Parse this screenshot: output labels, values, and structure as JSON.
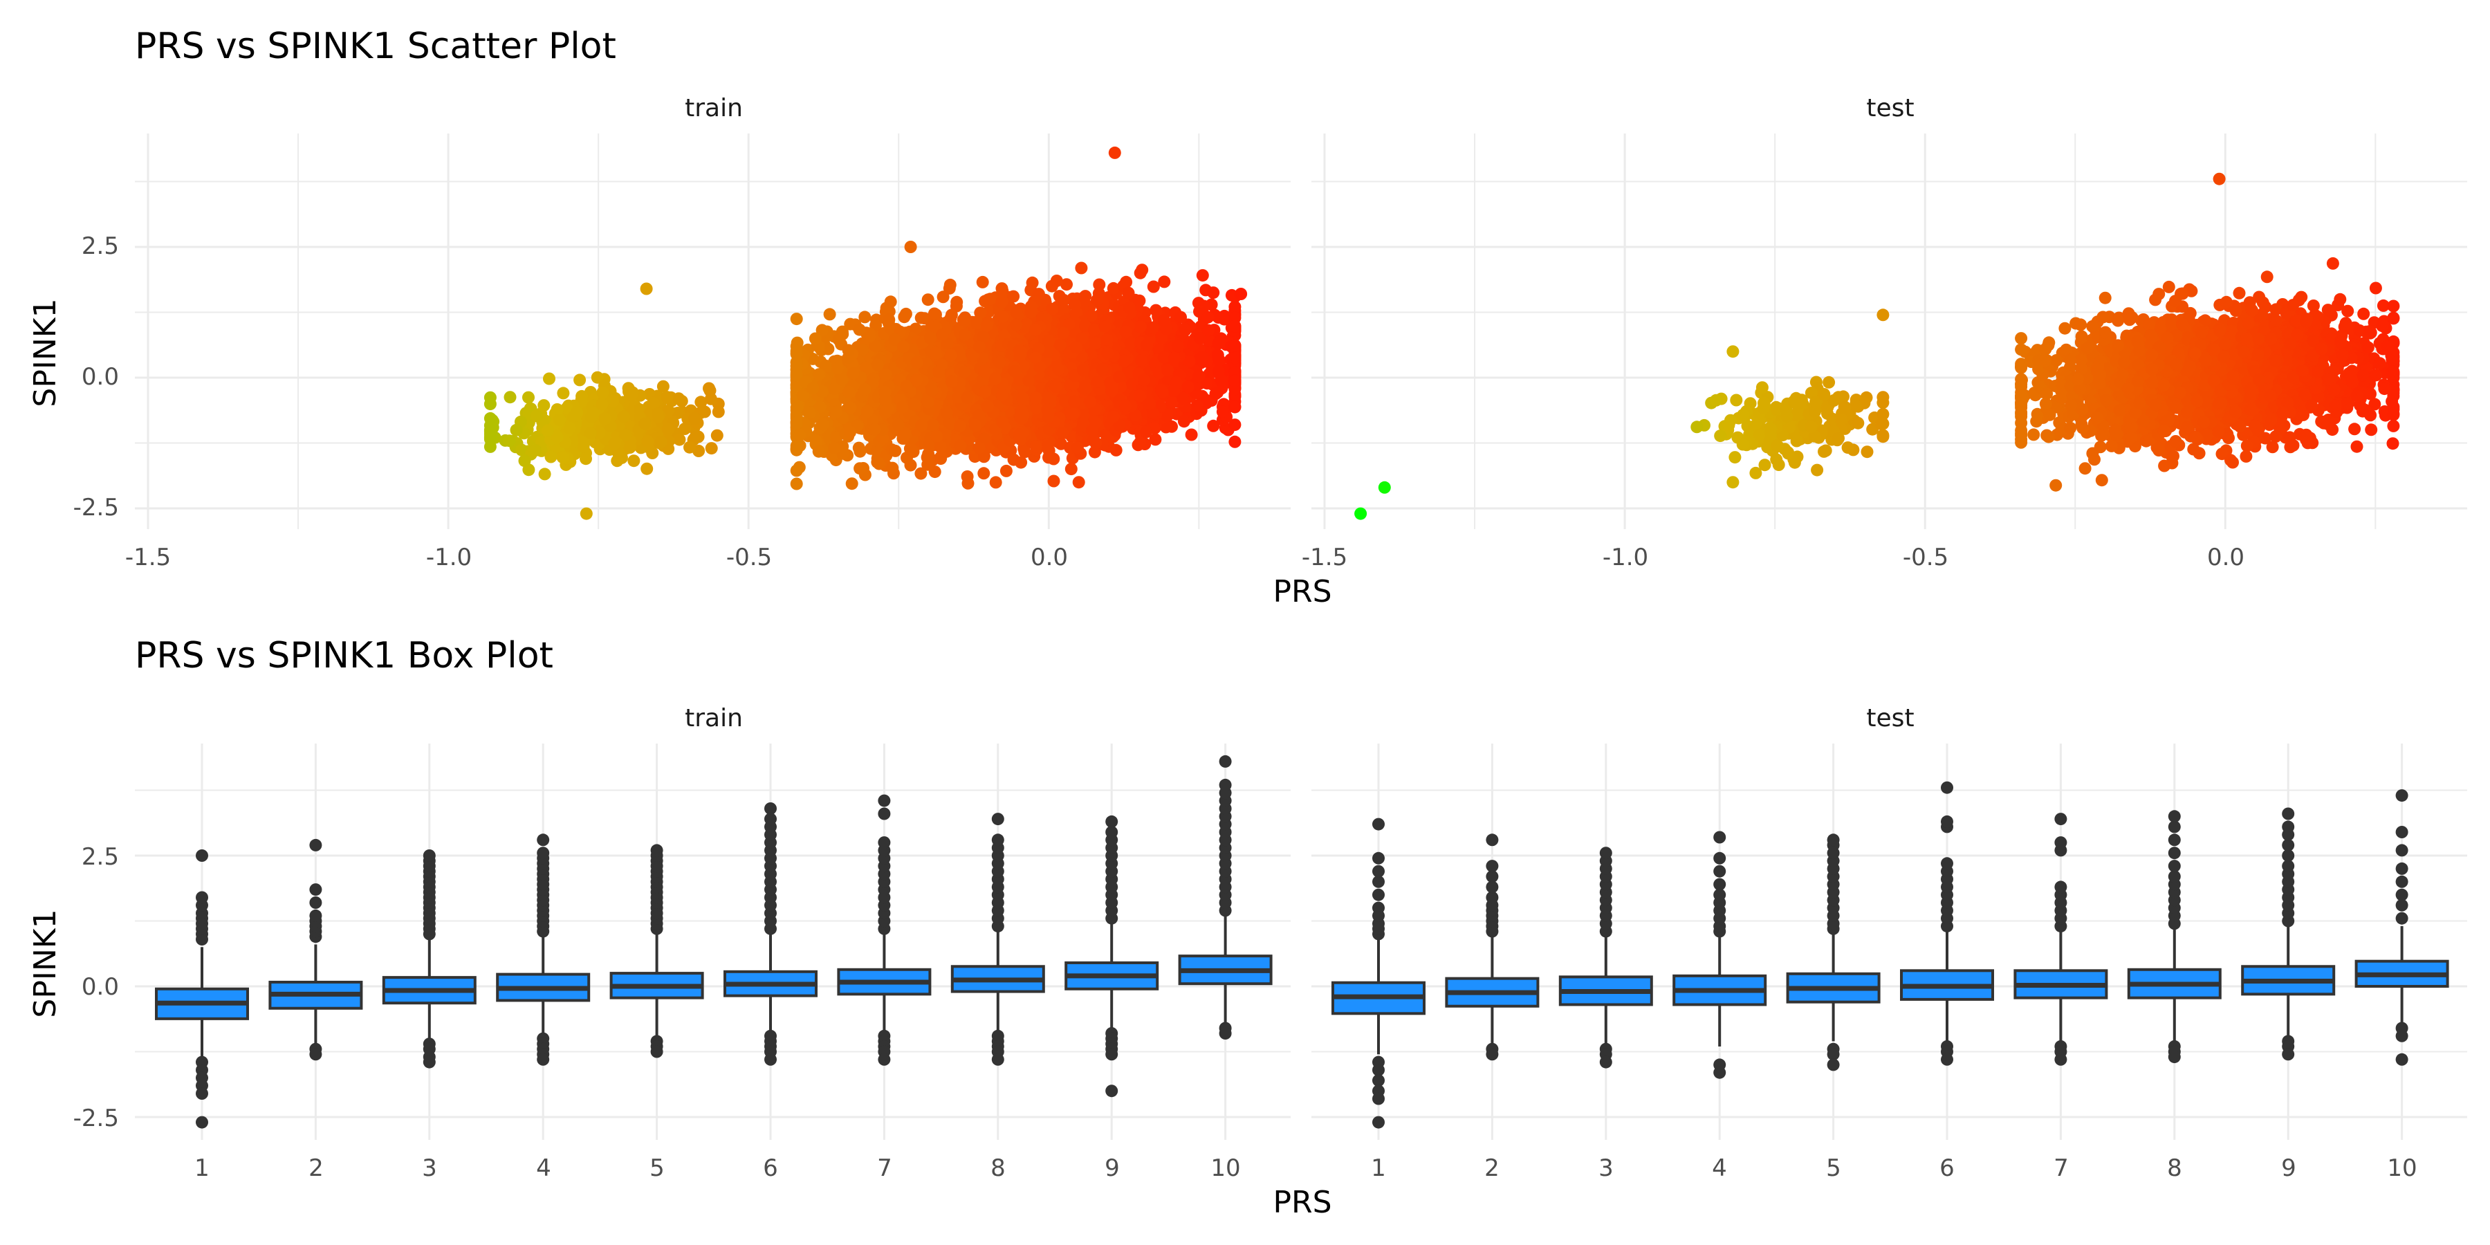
{
  "scatter": {
    "title": "PRS vs SPINK1 Scatter Plot",
    "xlabel": "PRS",
    "ylabel": "SPINK1",
    "panels": [
      "train",
      "test"
    ],
    "x_ticks": [
      "-1.5",
      "-1.0",
      "-0.5",
      "0.0"
    ],
    "y_ticks": [
      "2.5",
      "0.0",
      "-2.5"
    ]
  },
  "box": {
    "title": "PRS vs SPINK1 Box Plot",
    "xlabel": "PRS",
    "ylabel": "SPINK1",
    "panels": [
      "train",
      "test"
    ],
    "x_ticks": [
      "1",
      "2",
      "3",
      "4",
      "5",
      "6",
      "7",
      "8",
      "9",
      "10"
    ],
    "y_ticks": [
      "2.5",
      "0.0",
      "-2.5"
    ]
  },
  "colors": {
    "gradient_low": "#00ff00",
    "gradient_high": "#ff1a00",
    "box_fill": "#1e90ff",
    "box_line": "#333333",
    "grid": "#ebebeb"
  },
  "chart_data": [
    {
      "type": "scatter",
      "title": "PRS vs SPINK1 Scatter Plot",
      "xlabel": "PRS",
      "ylabel": "SPINK1",
      "facets": [
        "train",
        "test"
      ],
      "xlim": [
        -1.5,
        0.3
      ],
      "ylim": [
        -2.8,
        4.6
      ],
      "color_scale": {
        "low": "#00ff00",
        "high": "#ff1a00",
        "mapped_to": "PRS"
      },
      "series": [
        {
          "facet": "train",
          "clusters": [
            {
              "x_range": [
                -0.93,
                -0.55
              ],
              "y_center": -0.9,
              "y_spread": 0.45,
              "approx_points": 450
            },
            {
              "x_range": [
                -0.42,
                0.31
              ],
              "y_center": 0.0,
              "y_spread": 0.8,
              "approx_points": 5000
            }
          ],
          "extreme_points": [
            {
              "x": -0.77,
              "y": -2.6
            },
            {
              "x": -0.67,
              "y": 1.7
            },
            {
              "x": 0.11,
              "y": 4.3
            },
            {
              "x": 0.32,
              "y": 1.6
            },
            {
              "x": 0.05,
              "y": -2.0
            },
            {
              "x": -0.23,
              "y": 2.5
            }
          ]
        },
        {
          "facet": "test",
          "clusters": [
            {
              "x_range": [
                -0.88,
                -0.57
              ],
              "y_center": -0.9,
              "y_spread": 0.45,
              "approx_points": 200
            },
            {
              "x_range": [
                -0.34,
                0.28
              ],
              "y_center": 0.0,
              "y_spread": 0.75,
              "approx_points": 2500
            }
          ],
          "extreme_points": [
            {
              "x": -1.44,
              "y": -2.6
            },
            {
              "x": -1.4,
              "y": -2.1
            },
            {
              "x": -0.82,
              "y": -2.0
            },
            {
              "x": -0.82,
              "y": 0.5
            },
            {
              "x": -0.57,
              "y": 1.2
            },
            {
              "x": -0.01,
              "y": 3.8
            },
            {
              "x": 0.27,
              "y": 0.6
            }
          ]
        }
      ]
    },
    {
      "type": "box",
      "title": "PRS vs SPINK1 Box Plot",
      "xlabel": "PRS",
      "ylabel": "SPINK1",
      "facets": [
        "train",
        "test"
      ],
      "categories": [
        "1",
        "2",
        "3",
        "4",
        "5",
        "6",
        "7",
        "8",
        "9",
        "10"
      ],
      "ylim": [
        -2.8,
        4.6
      ],
      "series": [
        {
          "facet": "train",
          "boxes": [
            {
              "q1": -0.62,
              "median": -0.32,
              "q3": -0.05,
              "whisker_low": -1.35,
              "whisker_high": 0.75,
              "outliers_high": [
                0.9,
                1.0,
                1.1,
                1.2,
                1.3,
                1.4,
                1.55,
                1.7,
                2.5
              ],
              "outliers_low": [
                -1.45,
                -1.6,
                -1.75,
                -1.9,
                -2.05,
                -2.6
              ]
            },
            {
              "q1": -0.42,
              "median": -0.15,
              "q3": 0.08,
              "whisker_low": -1.1,
              "whisker_high": 0.8,
              "outliers_high": [
                0.95,
                1.05,
                1.15,
                1.25,
                1.35,
                1.6,
                1.85,
                2.7
              ],
              "outliers_low": [
                -1.2,
                -1.3
              ]
            },
            {
              "q1": -0.32,
              "median": -0.08,
              "q3": 0.17,
              "whisker_low": -1.0,
              "whisker_high": 0.9,
              "outliers_high": [
                1.0,
                1.1,
                1.2,
                1.3,
                1.4,
                1.5,
                1.6,
                1.7,
                1.8,
                1.9,
                2.0,
                2.1,
                2.2,
                2.3,
                2.4,
                2.5
              ],
              "outliers_low": [
                -1.1,
                -1.2,
                -1.35,
                -1.45
              ]
            },
            {
              "q1": -0.27,
              "median": -0.04,
              "q3": 0.23,
              "whisker_low": -0.95,
              "whisker_high": 0.95,
              "outliers_high": [
                1.05,
                1.15,
                1.25,
                1.35,
                1.45,
                1.55,
                1.65,
                1.75,
                1.85,
                1.95,
                2.05,
                2.15,
                2.25,
                2.35,
                2.45,
                2.55,
                2.8
              ],
              "outliers_low": [
                -1.0,
                -1.1,
                -1.2,
                -1.3,
                -1.4
              ]
            },
            {
              "q1": -0.22,
              "median": 0.0,
              "q3": 0.25,
              "whisker_low": -0.95,
              "whisker_high": 1.0,
              "outliers_high": [
                1.1,
                1.2,
                1.3,
                1.4,
                1.5,
                1.6,
                1.7,
                1.8,
                1.9,
                2.0,
                2.1,
                2.2,
                2.3,
                2.4,
                2.5,
                2.6
              ],
              "outliers_low": [
                -1.05,
                -1.15,
                -1.25
              ]
            },
            {
              "q1": -0.18,
              "median": 0.04,
              "q3": 0.28,
              "whisker_low": -0.85,
              "whisker_high": 1.0,
              "outliers_high": [
                1.1,
                1.25,
                1.4,
                1.55,
                1.7,
                1.85,
                2.0,
                2.15,
                2.3,
                2.45,
                2.6,
                2.75,
                2.9,
                3.05,
                3.2,
                3.4
              ],
              "outliers_low": [
                -0.95,
                -1.05,
                -1.15,
                -1.25,
                -1.4
              ]
            },
            {
              "q1": -0.15,
              "median": 0.08,
              "q3": 0.32,
              "whisker_low": -0.85,
              "whisker_high": 1.0,
              "outliers_high": [
                1.1,
                1.25,
                1.4,
                1.55,
                1.7,
                1.85,
                2.0,
                2.15,
                2.3,
                2.45,
                2.6,
                2.75,
                3.3,
                3.55
              ],
              "outliers_low": [
                -0.95,
                -1.05,
                -1.15,
                -1.25,
                -1.4
              ]
            },
            {
              "q1": -0.1,
              "median": 0.12,
              "q3": 0.38,
              "whisker_low": -0.85,
              "whisker_high": 1.05,
              "outliers_high": [
                1.15,
                1.3,
                1.45,
                1.6,
                1.75,
                1.9,
                2.05,
                2.2,
                2.35,
                2.5,
                2.65,
                2.8,
                3.2
              ],
              "outliers_low": [
                -0.95,
                -1.05,
                -1.15,
                -1.25,
                -1.4
              ]
            },
            {
              "q1": -0.05,
              "median": 0.2,
              "q3": 0.45,
              "whisker_low": -0.8,
              "whisker_high": 1.2,
              "outliers_high": [
                1.3,
                1.45,
                1.6,
                1.75,
                1.9,
                2.05,
                2.2,
                2.35,
                2.5,
                2.65,
                2.8,
                2.95,
                3.15
              ],
              "outliers_low": [
                -0.9,
                -1.0,
                -1.1,
                -1.2,
                -1.3,
                -2.0
              ]
            },
            {
              "q1": 0.05,
              "median": 0.3,
              "q3": 0.58,
              "whisker_low": -0.7,
              "whisker_high": 1.35,
              "outliers_high": [
                1.45,
                1.6,
                1.75,
                1.9,
                2.05,
                2.2,
                2.35,
                2.5,
                2.65,
                2.8,
                2.95,
                3.1,
                3.25,
                3.4,
                3.55,
                3.7,
                3.85,
                4.3
              ],
              "outliers_low": [
                -0.8,
                -0.9
              ]
            }
          ]
        },
        {
          "facet": "test",
          "boxes": [
            {
              "q1": -0.52,
              "median": -0.2,
              "q3": 0.07,
              "whisker_low": -1.3,
              "whisker_high": 0.9,
              "outliers_high": [
                1.0,
                1.1,
                1.2,
                1.35,
                1.5,
                1.75,
                2.0,
                2.2,
                2.45,
                3.1
              ],
              "outliers_low": [
                -1.45,
                -1.6,
                -1.8,
                -2.0,
                -2.15,
                -2.6
              ]
            },
            {
              "q1": -0.38,
              "median": -0.12,
              "q3": 0.15,
              "whisker_low": -1.1,
              "whisker_high": 0.95,
              "outliers_high": [
                1.05,
                1.15,
                1.25,
                1.35,
                1.45,
                1.55,
                1.7,
                1.9,
                2.1,
                2.3,
                2.8
              ],
              "outliers_low": [
                -1.2,
                -1.3
              ]
            },
            {
              "q1": -0.35,
              "median": -0.1,
              "q3": 0.18,
              "whisker_low": -1.1,
              "whisker_high": 0.95,
              "outliers_high": [
                1.05,
                1.2,
                1.35,
                1.5,
                1.65,
                1.8,
                1.95,
                2.1,
                2.25,
                2.4,
                2.55
              ],
              "outliers_low": [
                -1.2,
                -1.3,
                -1.45
              ]
            },
            {
              "q1": -0.35,
              "median": -0.08,
              "q3": 0.2,
              "whisker_low": -1.15,
              "whisker_high": 0.95,
              "outliers_high": [
                1.05,
                1.15,
                1.3,
                1.45,
                1.6,
                1.75,
                1.95,
                2.2,
                2.45,
                2.85
              ],
              "outliers_low": [
                -1.5,
                -1.65
              ]
            },
            {
              "q1": -0.3,
              "median": -0.04,
              "q3": 0.24,
              "whisker_low": -1.05,
              "whisker_high": 1.0,
              "outliers_high": [
                1.1,
                1.2,
                1.35,
                1.5,
                1.65,
                1.8,
                1.95,
                2.1,
                2.25,
                2.4,
                2.55,
                2.7,
                2.8
              ],
              "outliers_low": [
                -1.2,
                -1.3,
                -1.5
              ]
            },
            {
              "q1": -0.25,
              "median": 0.0,
              "q3": 0.3,
              "whisker_low": -1.05,
              "whisker_high": 1.05,
              "outliers_high": [
                1.15,
                1.3,
                1.45,
                1.6,
                1.75,
                1.9,
                2.05,
                2.2,
                2.35,
                3.05,
                3.15,
                3.8
              ],
              "outliers_low": [
                -1.15,
                -1.25,
                -1.4
              ]
            },
            {
              "q1": -0.22,
              "median": 0.02,
              "q3": 0.3,
              "whisker_low": -1.05,
              "whisker_high": 1.05,
              "outliers_high": [
                1.15,
                1.3,
                1.45,
                1.6,
                1.75,
                1.9,
                2.6,
                2.75,
                3.2
              ],
              "outliers_low": [
                -1.15,
                -1.25,
                -1.4
              ]
            },
            {
              "q1": -0.22,
              "median": 0.04,
              "q3": 0.32,
              "whisker_low": -1.05,
              "whisker_high": 1.1,
              "outliers_high": [
                1.2,
                1.35,
                1.5,
                1.65,
                1.8,
                1.95,
                2.1,
                2.3,
                2.55,
                2.8,
                3.05,
                3.25
              ],
              "outliers_low": [
                -1.15,
                -1.25,
                -1.35
              ]
            },
            {
              "q1": -0.15,
              "median": 0.1,
              "q3": 0.38,
              "whisker_low": -0.95,
              "whisker_high": 1.15,
              "outliers_high": [
                1.25,
                1.4,
                1.55,
                1.7,
                1.85,
                2.0,
                2.15,
                2.3,
                2.5,
                2.7,
                2.9,
                3.05,
                3.3
              ],
              "outliers_low": [
                -1.05,
                -1.15,
                -1.3
              ]
            },
            {
              "q1": 0.0,
              "median": 0.22,
              "q3": 0.48,
              "whisker_low": -0.7,
              "whisker_high": 1.15,
              "outliers_high": [
                1.3,
                1.55,
                1.75,
                2.0,
                2.25,
                2.6,
                2.95,
                3.65
              ],
              "outliers_low": [
                -0.8,
                -0.95,
                -1.4
              ]
            }
          ]
        }
      ]
    }
  ]
}
